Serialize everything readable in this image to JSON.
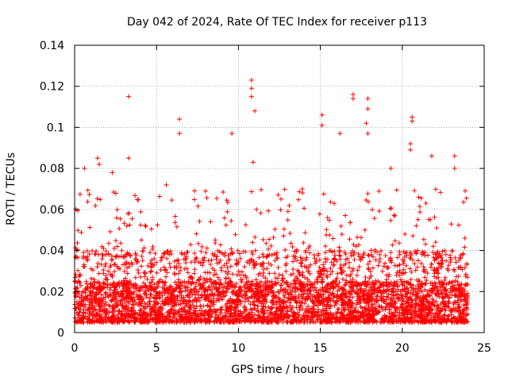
{
  "chart_data": {
    "type": "scatter",
    "title": "Day 042 of 2024, Rate Of TEC Index for receiver p113",
    "xlabel": "GPS time / hours",
    "ylabel": "ROTI / TECUs",
    "xlim": [
      0,
      25
    ],
    "ylim": [
      0,
      0.14
    ],
    "xticks": [
      0,
      5,
      10,
      15,
      20,
      25
    ],
    "xtick_labels": [
      "0",
      "5",
      "10",
      "15",
      "20",
      "25"
    ],
    "yticks": [
      0,
      0.02,
      0.04,
      0.06,
      0.08,
      0.1,
      0.12,
      0.14
    ],
    "ytick_labels": [
      "0",
      "0.02",
      "0.04",
      "0.06",
      "0.08",
      "0.1",
      "0.12",
      "0.14"
    ],
    "grid": true,
    "marker": "+",
    "series": [
      {
        "name": "ROTI",
        "color": "#ff0000",
        "x_range": [
          0,
          24
        ],
        "typical_range": [
          0.005,
          0.04
        ],
        "notable_points": [
          {
            "x": 3.3,
            "y": 0.115
          },
          {
            "x": 3.3,
            "y": 0.085
          },
          {
            "x": 6.4,
            "y": 0.104
          },
          {
            "x": 6.4,
            "y": 0.097
          },
          {
            "x": 9.6,
            "y": 0.097
          },
          {
            "x": 10.8,
            "y": 0.123
          },
          {
            "x": 10.8,
            "y": 0.119
          },
          {
            "x": 10.8,
            "y": 0.115
          },
          {
            "x": 11.0,
            "y": 0.108
          },
          {
            "x": 10.9,
            "y": 0.083
          },
          {
            "x": 15.1,
            "y": 0.106
          },
          {
            "x": 15.1,
            "y": 0.101
          },
          {
            "x": 16.2,
            "y": 0.097
          },
          {
            "x": 17.0,
            "y": 0.116
          },
          {
            "x": 17.0,
            "y": 0.114
          },
          {
            "x": 17.9,
            "y": 0.114
          },
          {
            "x": 17.9,
            "y": 0.109
          },
          {
            "x": 17.8,
            "y": 0.102
          },
          {
            "x": 17.9,
            "y": 0.097
          },
          {
            "x": 20.6,
            "y": 0.105
          },
          {
            "x": 20.6,
            "y": 0.103
          },
          {
            "x": 20.5,
            "y": 0.092
          },
          {
            "x": 20.5,
            "y": 0.089
          },
          {
            "x": 1.4,
            "y": 0.085
          },
          {
            "x": 1.5,
            "y": 0.082
          },
          {
            "x": 2.3,
            "y": 0.078
          },
          {
            "x": 0.6,
            "y": 0.08
          },
          {
            "x": 5.6,
            "y": 0.072
          },
          {
            "x": 8.3,
            "y": 0.054
          },
          {
            "x": 12.6,
            "y": 0.065
          },
          {
            "x": 13.9,
            "y": 0.07
          },
          {
            "x": 19.3,
            "y": 0.08
          },
          {
            "x": 21.8,
            "y": 0.086
          },
          {
            "x": 23.2,
            "y": 0.086
          },
          {
            "x": 23.2,
            "y": 0.08
          }
        ]
      }
    ]
  }
}
